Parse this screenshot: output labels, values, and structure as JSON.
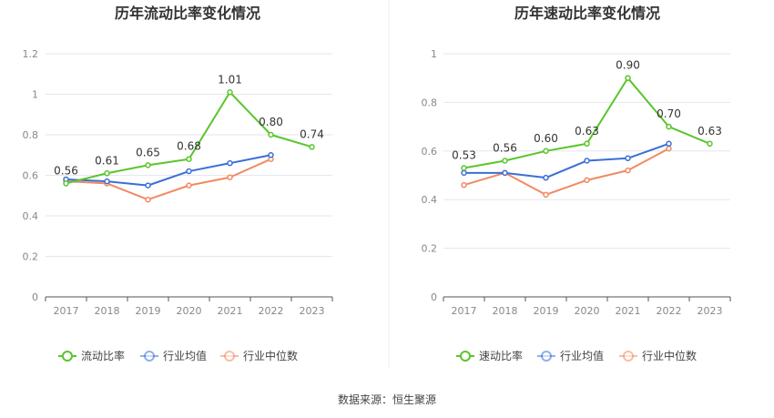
{
  "source": "数据来源：恒生聚源",
  "colors": {
    "primary": "#5ac52d",
    "average": "#3b6fd6",
    "median": "#f18a62",
    "grid": "#e6e6ee",
    "axis": "#555555"
  },
  "chart_data": [
    {
      "type": "line",
      "title": "历年流动比率变化情况",
      "categories": [
        "2017",
        "2018",
        "2019",
        "2020",
        "2021",
        "2022",
        "2023"
      ],
      "ylim": [
        0,
        1.2
      ],
      "yticks": [
        "0",
        "0.2",
        "0.4",
        "0.6",
        "0.8",
        "1",
        "1.2"
      ],
      "legend_position": "bottom",
      "grid": true,
      "series": [
        {
          "name": "流动比率",
          "values": [
            0.56,
            0.61,
            0.65,
            0.68,
            1.01,
            0.8,
            0.74
          ],
          "labels": [
            "0.56",
            "0.61",
            "0.65",
            "0.68",
            "1.01",
            "0.80",
            "0.74"
          ]
        },
        {
          "name": "行业均值",
          "values": [
            0.58,
            0.57,
            0.55,
            0.62,
            0.66,
            0.7,
            null
          ]
        },
        {
          "name": "行业中位数",
          "values": [
            0.57,
            0.56,
            0.48,
            0.55,
            0.59,
            0.68,
            null
          ]
        }
      ]
    },
    {
      "type": "line",
      "title": "历年速动比率变化情况",
      "categories": [
        "2017",
        "2018",
        "2019",
        "2020",
        "2021",
        "2022",
        "2023"
      ],
      "ylim": [
        0,
        1
      ],
      "yticks": [
        "0",
        "0.2",
        "0.4",
        "0.6",
        "0.8",
        "1"
      ],
      "legend_position": "bottom",
      "grid": true,
      "series": [
        {
          "name": "速动比率",
          "values": [
            0.53,
            0.56,
            0.6,
            0.63,
            0.9,
            0.7,
            0.63
          ],
          "labels": [
            "0.53",
            "0.56",
            "0.60",
            "0.63",
            "0.90",
            "0.70",
            "0.63"
          ]
        },
        {
          "name": "行业均值",
          "values": [
            0.51,
            0.51,
            0.49,
            0.56,
            0.57,
            0.63,
            null
          ]
        },
        {
          "name": "行业中位数",
          "values": [
            0.46,
            0.51,
            0.42,
            0.48,
            0.52,
            0.61,
            null
          ]
        }
      ]
    }
  ]
}
